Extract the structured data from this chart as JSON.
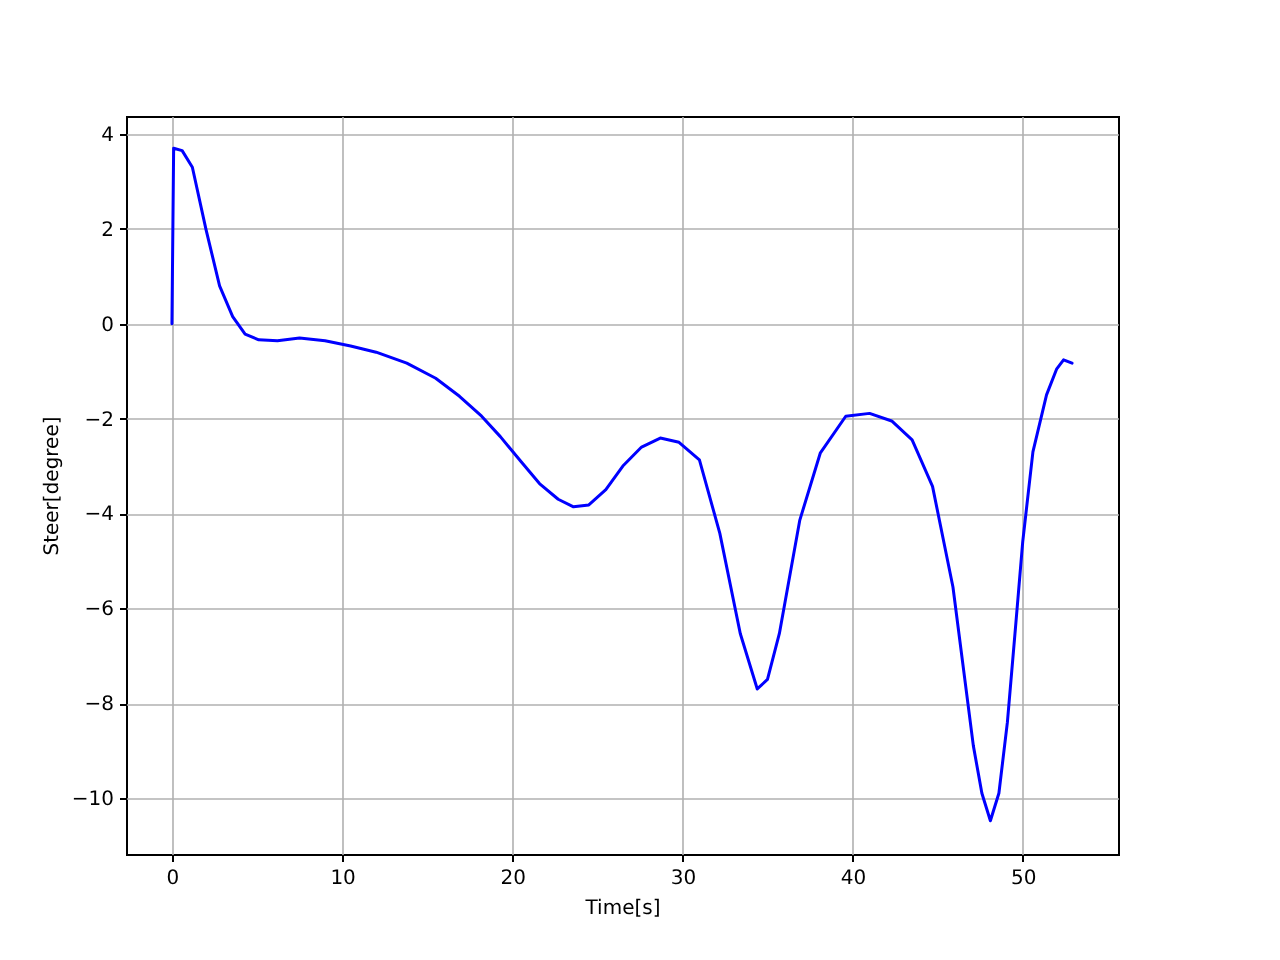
{
  "chart_data": {
    "type": "line",
    "xlabel": "Time[s]",
    "ylabel": "Steer[degree]",
    "x": [
      0,
      0.1,
      0.6,
      1.2,
      2.0,
      2.8,
      3.57,
      4.3,
      5.1,
      6.2,
      7.5,
      9,
      10.5,
      12,
      13.8,
      15.5,
      16.9,
      18.2,
      19.3,
      20.5,
      21.6,
      22.7,
      23.6,
      24.5,
      25.5,
      26.5,
      27.6,
      28.7,
      29.8,
      31.0,
      32.2,
      33.4,
      34.4,
      35.0,
      35.7,
      36.9,
      38.1,
      39.6,
      41.0,
      42.3,
      43.5,
      44.7,
      45.9,
      47.1,
      47.6,
      48.1,
      48.6,
      49.1,
      49.6,
      50.0,
      50.6,
      51.4,
      52.0,
      52.4,
      52.9
    ],
    "series": [
      {
        "color": "#0000ff",
        "values": [
          0,
          3.7,
          3.65,
          3.3,
          1.99,
          0.8,
          0.15,
          -0.22,
          -0.34,
          -0.36,
          -0.3,
          -0.36,
          -0.47,
          -0.6,
          -0.83,
          -1.15,
          -1.53,
          -1.95,
          -2.38,
          -2.9,
          -3.37,
          -3.7,
          -3.86,
          -3.82,
          -3.5,
          -3.0,
          -2.6,
          -2.41,
          -2.5,
          -2.87,
          -4.42,
          -6.53,
          -7.7,
          -7.5,
          -6.53,
          -4.14,
          -2.73,
          -1.95,
          -1.89,
          -2.05,
          -2.45,
          -3.43,
          -5.55,
          -8.9,
          -9.9,
          -10.48,
          -9.9,
          -8.4,
          -6.3,
          -4.6,
          -2.7,
          -1.5,
          -0.95,
          -0.76,
          -0.83
        ]
      }
    ],
    "xlim": [
      -2.7,
      55.6
    ],
    "ylim": [
      -11.18,
      4.38
    ],
    "xticks": [
      0,
      10,
      20,
      30,
      40,
      50
    ],
    "yticks": [
      -10,
      -8,
      -6,
      -4,
      -2,
      0,
      2,
      4
    ],
    "grid": true,
    "line_style": "solid"
  }
}
